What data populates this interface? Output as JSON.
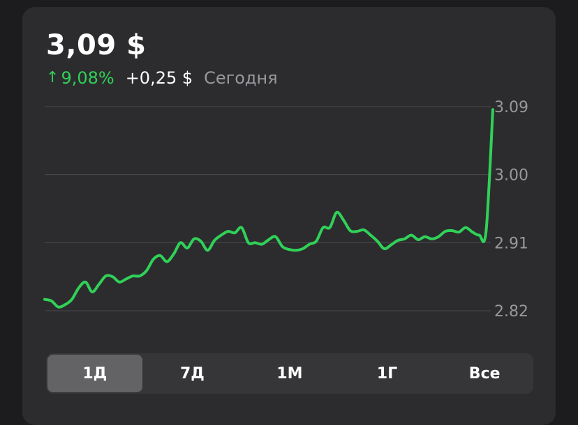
{
  "quote": {
    "price": "3,09 $",
    "change_arrow": "↑",
    "change_percent": "9,08%",
    "change_abs": "+0,25 $",
    "period": "Сегодня"
  },
  "chart_data": {
    "type": "line",
    "ylim": [
      2.82,
      3.09
    ],
    "yticks": [
      "3.09",
      "3.00",
      "2.91",
      "2.82"
    ],
    "ytick_values": [
      3.09,
      3.0,
      2.91,
      2.82
    ],
    "grid": true,
    "line_color": "#30d158",
    "series": [
      {
        "values": [
          2.835,
          2.833,
          2.825,
          2.828,
          2.835,
          2.85,
          2.858,
          2.845,
          2.855,
          2.866,
          2.865,
          2.858,
          2.862,
          2.866,
          2.866,
          2.873,
          2.888,
          2.893,
          2.885,
          2.895,
          2.91,
          2.903,
          2.915,
          2.912,
          2.9,
          2.913,
          2.92,
          2.925,
          2.923,
          2.93,
          2.91,
          2.91,
          2.908,
          2.914,
          2.918,
          2.905,
          2.901,
          2.9,
          2.902,
          2.908,
          2.912,
          2.93,
          2.93,
          2.95,
          2.94,
          2.926,
          2.925,
          2.927,
          2.92,
          2.912,
          2.902,
          2.907,
          2.913,
          2.915,
          2.92,
          2.914,
          2.918,
          2.915,
          2.918,
          2.925,
          2.926,
          2.924,
          2.93,
          2.924,
          2.92,
          2.925,
          3.086
        ]
      }
    ]
  },
  "range_selector": {
    "options": [
      "1Д",
      "7Д",
      "1М",
      "1Г",
      "Все"
    ],
    "selected_index": 0
  }
}
